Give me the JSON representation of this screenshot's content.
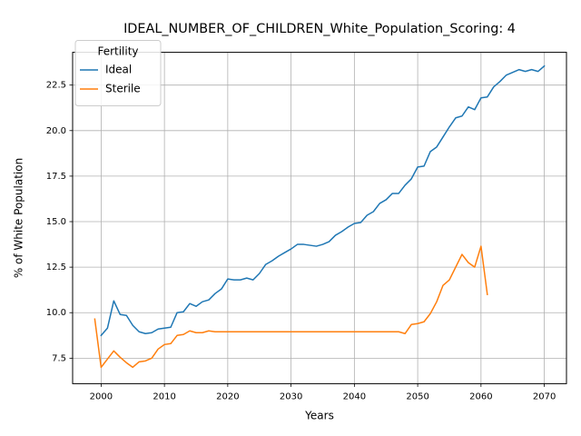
{
  "chart_data": {
    "type": "line",
    "title": "IDEAL_NUMBER_OF_CHILDREN_White_Population_Scoring: 4",
    "xlabel": "Years",
    "ylabel": "% of White Population",
    "xlim": [
      1995.5,
      2073.5
    ],
    "ylim": [
      6.1,
      24.3
    ],
    "x_ticks": [
      2000,
      2010,
      2020,
      2030,
      2040,
      2050,
      2060,
      2070
    ],
    "x_tick_labels": [
      "2000",
      "2010",
      "2020",
      "2030",
      "2040",
      "2050",
      "2060",
      "2070"
    ],
    "y_ticks": [
      7.5,
      10.0,
      12.5,
      15.0,
      17.5,
      20.0,
      22.5
    ],
    "y_tick_labels": [
      "7.5",
      "10.0",
      "12.5",
      "15.0",
      "17.5",
      "20.0",
      "22.5"
    ],
    "grid": true,
    "legend": {
      "title": "Fertility",
      "placement": "top-left"
    },
    "series": [
      {
        "name": "Ideal",
        "color": "#1f77b4",
        "x": [
          2000,
          2001,
          2002,
          2003,
          2004,
          2005,
          2006,
          2007,
          2008,
          2009,
          2010,
          2011,
          2012,
          2013,
          2014,
          2015,
          2016,
          2017,
          2018,
          2019,
          2020,
          2021,
          2022,
          2023,
          2024,
          2025,
          2026,
          2027,
          2028,
          2029,
          2030,
          2031,
          2032,
          2033,
          2034,
          2035,
          2036,
          2037,
          2038,
          2039,
          2040,
          2041,
          2042,
          2043,
          2044,
          2045,
          2046,
          2047,
          2048,
          2049,
          2050,
          2051,
          2052,
          2053,
          2054,
          2055,
          2056,
          2057,
          2058,
          2059,
          2060,
          2061,
          2062,
          2063,
          2064,
          2065,
          2066,
          2067,
          2068,
          2069,
          2070
        ],
        "values": [
          8.75,
          9.15,
          10.65,
          9.9,
          9.85,
          9.3,
          8.95,
          8.85,
          8.9,
          9.1,
          9.15,
          9.2,
          10.0,
          10.05,
          10.5,
          10.35,
          10.6,
          10.7,
          11.05,
          11.3,
          11.85,
          11.8,
          11.8,
          11.9,
          11.8,
          12.15,
          12.65,
          12.85,
          13.1,
          13.3,
          13.5,
          13.75,
          13.75,
          13.7,
          13.65,
          13.75,
          13.9,
          14.25,
          14.45,
          14.7,
          14.9,
          14.95,
          15.35,
          15.55,
          16.0,
          16.2,
          16.55,
          16.55,
          17.0,
          17.35,
          18.0,
          18.05,
          18.85,
          19.1,
          19.65,
          20.2,
          20.7,
          20.8,
          21.3,
          21.15,
          21.8,
          21.85,
          22.4,
          22.7,
          23.05,
          23.2,
          23.35,
          23.25,
          23.35,
          23.25,
          23.55
        ]
      },
      {
        "name": "Sterile",
        "color": "#ff7f0e",
        "x": [
          1999,
          2000,
          2001,
          2002,
          2003,
          2004,
          2005,
          2006,
          2007,
          2008,
          2009,
          2010,
          2011,
          2012,
          2013,
          2014,
          2015,
          2016,
          2017,
          2018,
          2019,
          2020,
          2021,
          2022,
          2023,
          2024,
          2025,
          2026,
          2027,
          2028,
          2029,
          2030,
          2031,
          2032,
          2033,
          2034,
          2035,
          2036,
          2037,
          2038,
          2039,
          2040,
          2041,
          2042,
          2043,
          2044,
          2045,
          2046,
          2047,
          2048,
          2049,
          2050,
          2051,
          2052,
          2053,
          2054,
          2055,
          2056,
          2057,
          2058,
          2059,
          2060,
          2061
        ],
        "values": [
          9.65,
          7.0,
          7.45,
          7.9,
          7.55,
          7.25,
          7.0,
          7.3,
          7.35,
          7.5,
          8.0,
          8.25,
          8.3,
          8.75,
          8.8,
          9.0,
          8.9,
          8.9,
          9.0,
          8.95,
          8.95,
          8.95,
          8.95,
          8.95,
          8.95,
          8.95,
          8.95,
          8.95,
          8.95,
          8.95,
          8.95,
          8.95,
          8.95,
          8.95,
          8.95,
          8.95,
          8.95,
          8.95,
          8.95,
          8.95,
          8.95,
          8.95,
          8.95,
          8.95,
          8.95,
          8.95,
          8.95,
          8.95,
          8.95,
          8.85,
          9.35,
          9.4,
          9.5,
          9.95,
          10.6,
          11.5,
          11.8,
          12.5,
          13.2,
          12.75,
          12.5,
          13.65,
          11.0
        ]
      }
    ]
  }
}
